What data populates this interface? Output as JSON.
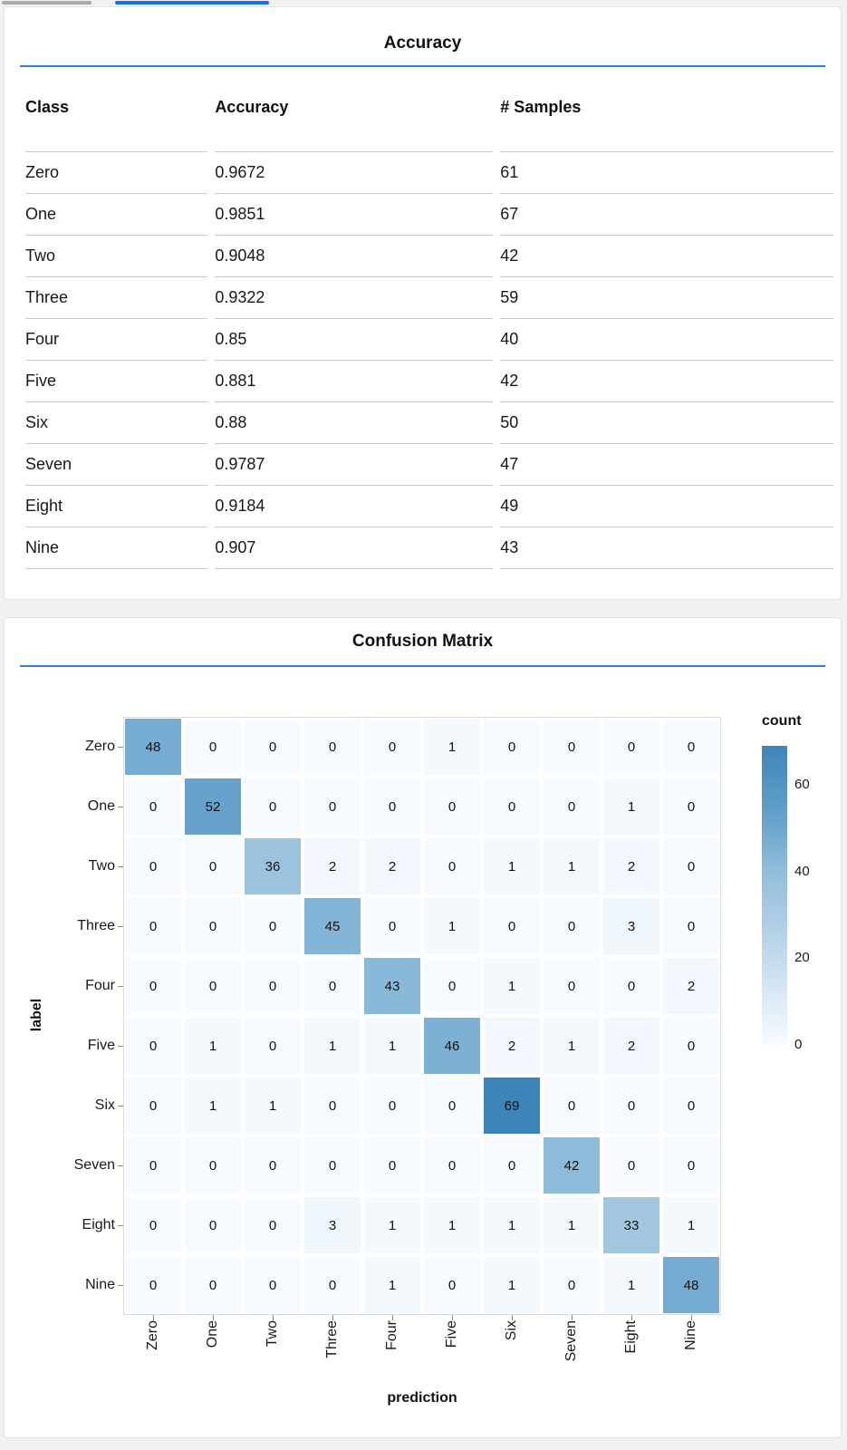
{
  "page": {
    "background": "#f0f1f2",
    "card_background": "#ffffff",
    "accent_blue": "#2e7ce9"
  },
  "top_bars": {
    "gray_color": "#a9a9a9",
    "blue_color": "#1a6fe8"
  },
  "accuracy_card": {
    "title": "Accuracy",
    "table": {
      "columns": [
        "Class",
        "Accuracy",
        "# Samples"
      ],
      "rows": [
        [
          "Zero",
          "0.9672",
          "61"
        ],
        [
          "One",
          "0.9851",
          "67"
        ],
        [
          "Two",
          "0.9048",
          "42"
        ],
        [
          "Three",
          "0.9322",
          "59"
        ],
        [
          "Four",
          "0.85",
          "40"
        ],
        [
          "Five",
          "0.881",
          "42"
        ],
        [
          "Six",
          "0.88",
          "50"
        ],
        [
          "Seven",
          "0.9787",
          "47"
        ],
        [
          "Eight",
          "0.9184",
          "49"
        ],
        [
          "Nine",
          "0.907",
          "43"
        ]
      ]
    }
  },
  "confusion_card": {
    "title": "Confusion Matrix"
  },
  "chart_data": {
    "type": "heatmap",
    "title": "Confusion Matrix",
    "xlabel": "prediction",
    "ylabel": "label",
    "x_categories": [
      "Zero",
      "One",
      "Two",
      "Three",
      "Four",
      "Five",
      "Six",
      "Seven",
      "Eight",
      "Nine"
    ],
    "y_categories": [
      "Zero",
      "One",
      "Two",
      "Three",
      "Four",
      "Five",
      "Six",
      "Seven",
      "Eight",
      "Nine"
    ],
    "matrix": [
      [
        48,
        0,
        0,
        0,
        0,
        1,
        0,
        0,
        0,
        0
      ],
      [
        0,
        52,
        0,
        0,
        0,
        0,
        0,
        0,
        1,
        0
      ],
      [
        0,
        0,
        36,
        2,
        2,
        0,
        1,
        1,
        2,
        0
      ],
      [
        0,
        0,
        0,
        45,
        0,
        1,
        0,
        0,
        3,
        0
      ],
      [
        0,
        0,
        0,
        0,
        43,
        0,
        1,
        0,
        0,
        2
      ],
      [
        0,
        1,
        0,
        1,
        1,
        46,
        2,
        1,
        2,
        0
      ],
      [
        0,
        1,
        1,
        0,
        0,
        0,
        69,
        0,
        0,
        0
      ],
      [
        0,
        0,
        0,
        0,
        0,
        0,
        0,
        42,
        0,
        0
      ],
      [
        0,
        0,
        0,
        3,
        1,
        1,
        1,
        1,
        33,
        1
      ],
      [
        0,
        0,
        0,
        0,
        1,
        0,
        1,
        0,
        1,
        48
      ]
    ],
    "color_domain": [
      0,
      69
    ],
    "color_scheme": "blues",
    "color_stops": [
      [
        0,
        "#f7fbff"
      ],
      [
        33,
        "#a3c6e0"
      ],
      [
        42,
        "#8cbcd9"
      ],
      [
        48,
        "#76acd1"
      ],
      [
        52,
        "#66a2cb"
      ],
      [
        69,
        "#3d85b8"
      ]
    ],
    "legend": {
      "title": "count",
      "ticks": [
        0,
        20,
        40,
        60
      ],
      "position": "right"
    },
    "grid": false
  }
}
